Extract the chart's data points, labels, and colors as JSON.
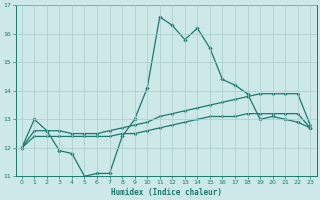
{
  "title": "",
  "xlabel": "Humidex (Indice chaleur)",
  "ylabel": "",
  "background_color": "#cce8e8",
  "grid_color": "#aacccc",
  "line_color": "#1a7a6e",
  "xlim": [
    -0.5,
    23.5
  ],
  "ylim": [
    11,
    17
  ],
  "yticks": [
    11,
    12,
    13,
    14,
    15,
    16,
    17
  ],
  "xticks": [
    0,
    1,
    2,
    3,
    4,
    5,
    6,
    7,
    8,
    9,
    10,
    11,
    12,
    13,
    14,
    15,
    16,
    17,
    18,
    19,
    20,
    21,
    22,
    23
  ],
  "line1_x": [
    0,
    1,
    2,
    3,
    4,
    5,
    6,
    7,
    8,
    9,
    10,
    11,
    12,
    13,
    14,
    15,
    16,
    17,
    18,
    19,
    20,
    21,
    22,
    23
  ],
  "line1_y": [
    12.0,
    13.0,
    12.6,
    11.9,
    11.8,
    11.0,
    11.1,
    11.1,
    12.4,
    13.0,
    14.1,
    16.6,
    16.3,
    15.8,
    16.2,
    15.5,
    14.4,
    14.2,
    13.9,
    13.0,
    13.1,
    13.0,
    12.9,
    12.7
  ],
  "line2_x": [
    0,
    1,
    2,
    3,
    4,
    5,
    6,
    7,
    8,
    9,
    10,
    11,
    12,
    13,
    14,
    15,
    16,
    17,
    18,
    19,
    20,
    21,
    22,
    23
  ],
  "line2_y": [
    12.0,
    12.6,
    12.6,
    12.6,
    12.5,
    12.5,
    12.5,
    12.6,
    12.7,
    12.8,
    12.9,
    13.1,
    13.2,
    13.3,
    13.4,
    13.5,
    13.6,
    13.7,
    13.8,
    13.9,
    13.9,
    13.9,
    13.9,
    12.8
  ],
  "line3_x": [
    0,
    1,
    2,
    3,
    4,
    5,
    6,
    7,
    8,
    9,
    10,
    11,
    12,
    13,
    14,
    15,
    16,
    17,
    18,
    19,
    20,
    21,
    22,
    23
  ],
  "line3_y": [
    12.0,
    12.4,
    12.4,
    12.4,
    12.4,
    12.4,
    12.4,
    12.4,
    12.5,
    12.5,
    12.6,
    12.7,
    12.8,
    12.9,
    13.0,
    13.1,
    13.1,
    13.1,
    13.2,
    13.2,
    13.2,
    13.2,
    13.2,
    12.7
  ]
}
